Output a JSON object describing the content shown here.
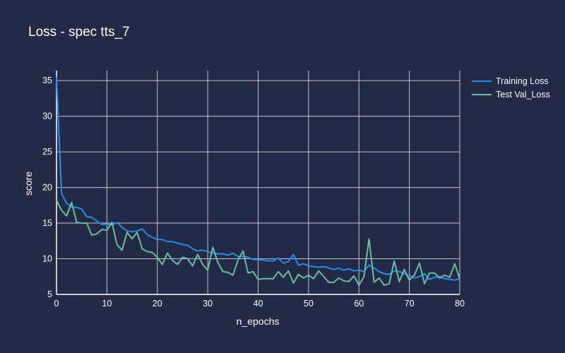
{
  "chart_data": {
    "type": "line",
    "title": "Loss - spec tts_7",
    "xlabel": "n_epochs",
    "ylabel": "score",
    "xlim": [
      0,
      80
    ],
    "ylim": [
      5,
      36.4
    ],
    "x_ticks": [
      0,
      10,
      20,
      30,
      40,
      50,
      60,
      70,
      80
    ],
    "y_ticks": [
      5,
      10,
      15,
      20,
      25,
      30,
      35
    ],
    "grid": true,
    "legend_position": "top-right",
    "series": [
      {
        "name": "Training Loss",
        "color": "#1f8ff0",
        "values": [
          35.5,
          19.2,
          17.8,
          17.3,
          17.2,
          17.0,
          15.9,
          15.8,
          15.3,
          14.8,
          14.9,
          14.7,
          15.1,
          14.4,
          13.9,
          13.8,
          13.9,
          14.2,
          13.4,
          13.0,
          12.7,
          12.7,
          12.4,
          12.4,
          12.2,
          12.0,
          11.9,
          11.4,
          11.1,
          11.2,
          11.0,
          10.8,
          10.7,
          10.7,
          10.5,
          10.8,
          10.3,
          10.3,
          10.2,
          9.9,
          9.9,
          9.8,
          9.7,
          9.7,
          10.1,
          9.4,
          9.6,
          10.6,
          9.1,
          9.3,
          9.0,
          8.9,
          8.8,
          8.9,
          8.7,
          8.5,
          8.7,
          8.4,
          8.6,
          8.3,
          8.4,
          8.2,
          9.1,
          8.7,
          8.2,
          7.9,
          7.8,
          8.3,
          8.2,
          7.9,
          7.7,
          7.3,
          7.5,
          7.9,
          7.1,
          7.4,
          7.5,
          7.2,
          7.1,
          7.0,
          7.2
        ],
        "x": [
          0,
          1,
          2,
          3,
          4,
          5,
          6,
          7,
          8,
          9,
          10,
          11,
          12,
          13,
          14,
          15,
          16,
          17,
          18,
          19,
          20,
          21,
          22,
          23,
          24,
          25,
          26,
          27,
          28,
          29,
          30,
          31,
          32,
          33,
          34,
          35,
          36,
          37,
          38,
          39,
          40,
          41,
          42,
          43,
          44,
          45,
          46,
          47,
          48,
          49,
          50,
          51,
          52,
          53,
          54,
          55,
          56,
          57,
          58,
          59,
          60,
          61,
          62,
          63,
          64,
          65,
          66,
          67,
          68,
          69,
          70,
          71,
          72,
          73,
          74,
          75,
          76,
          77,
          78,
          79,
          80
        ]
      },
      {
        "name": "Test Val_Loss",
        "color": "#6bbfa1",
        "values": [
          18.2,
          16.8,
          16.0,
          17.9,
          15.1,
          15.0,
          15.0,
          13.3,
          13.5,
          14.1,
          14.0,
          15.1,
          12.0,
          11.2,
          13.7,
          12.8,
          13.7,
          11.4,
          11.0,
          10.9,
          10.2,
          9.2,
          10.8,
          9.8,
          9.2,
          10.2,
          10.0,
          9.0,
          10.6,
          9.2,
          8.4,
          11.6,
          9.5,
          8.2,
          8.1,
          7.7,
          9.8,
          11.1,
          8.0,
          8.2,
          7.1,
          7.2,
          7.2,
          7.2,
          8.2,
          7.4,
          8.3,
          6.6,
          7.8,
          7.3,
          7.7,
          7.2,
          8.3,
          7.5,
          6.7,
          6.7,
          7.3,
          6.9,
          6.8,
          7.6,
          6.3,
          7.5,
          12.8,
          6.7,
          7.3,
          6.3,
          6.5,
          9.7,
          6.8,
          8.5,
          7.0,
          7.7,
          9.4,
          6.5,
          8.0,
          8.0,
          7.3,
          7.7,
          7.4,
          9.3,
          7.2
        ],
        "x": [
          0,
          1,
          2,
          3,
          4,
          5,
          6,
          7,
          8,
          9,
          10,
          11,
          12,
          13,
          14,
          15,
          16,
          17,
          18,
          19,
          20,
          21,
          22,
          23,
          24,
          25,
          26,
          27,
          28,
          29,
          30,
          31,
          32,
          33,
          34,
          35,
          36,
          37,
          38,
          39,
          40,
          41,
          42,
          43,
          44,
          45,
          46,
          47,
          48,
          49,
          50,
          51,
          52,
          53,
          54,
          55,
          56,
          57,
          58,
          59,
          60,
          61,
          62,
          63,
          64,
          65,
          66,
          67,
          68,
          69,
          70,
          71,
          72,
          73,
          74,
          75,
          76,
          77,
          78,
          79,
          80
        ]
      }
    ]
  }
}
